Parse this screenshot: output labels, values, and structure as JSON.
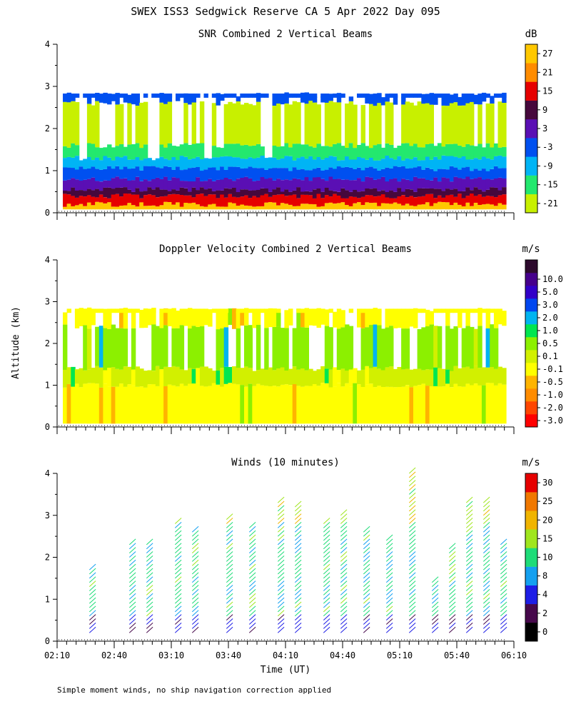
{
  "title": "SWEX ISS3 Sedgwick Reserve CA   5 Apr 2022 Day 095",
  "footnote": "Simple moment winds, no ship navigation correction applied",
  "ylabel": "Altitude (km)",
  "xlabel": "Time (UT)",
  "colors": {
    "snr": [
      "#c8f000",
      "#23e86e",
      "#00b4f5",
      "#0050f0",
      "#5a0fb4",
      "#46083c",
      "#e60000",
      "#ff8c00",
      "#ffc800"
    ],
    "doppler": [
      "#ff0000",
      "#ff4600",
      "#ff8c00",
      "#ffb400",
      "#ffff00",
      "#d2f000",
      "#8cf000",
      "#00e650",
      "#00b4f0",
      "#0046f0",
      "#3200c8",
      "#46008c",
      "#2d0a2d"
    ],
    "winds": [
      "#000000",
      "#46084b",
      "#1e1ee6",
      "#14a0f0",
      "#1edc78",
      "#a0e61e",
      "#f0b400",
      "#f07800",
      "#e60000"
    ]
  },
  "chart_data": [
    {
      "type": "heatmap",
      "title": "SNR Combined 2 Vertical Beams",
      "units": "dB",
      "ylim": [
        0,
        4
      ],
      "yticks": [
        "0",
        "1",
        "2",
        "3",
        "4"
      ],
      "xticks": [
        "02:10",
        "02:40",
        "03:10",
        "03:40",
        "04:10",
        "04:40",
        "05:10",
        "05:40",
        "06:10"
      ],
      "colorbar": [
        "-21",
        "-15",
        "-9",
        "-3",
        "3",
        "9",
        "15",
        "21",
        "27"
      ],
      "layers": [
        {
          "alt_top": 0.2,
          "value": 27
        },
        {
          "alt_top": 0.4,
          "value": 15
        },
        {
          "alt_top": 0.55,
          "value": 9
        },
        {
          "alt_top": 0.8,
          "value": 3
        },
        {
          "alt_top": 1.05,
          "value": -3
        },
        {
          "alt_top": 1.3,
          "value": -9
        },
        {
          "alt_top": 1.6,
          "value": -15
        },
        {
          "alt_top": 2.6,
          "value": -21
        },
        {
          "alt_top": 2.8,
          "value": -3
        }
      ]
    },
    {
      "type": "heatmap",
      "title": "Doppler Velocity Combined 2 Vertical Beams",
      "units": "m/s",
      "ylim": [
        0,
        4
      ],
      "yticks": [
        "0",
        "1",
        "2",
        "3",
        "4"
      ],
      "xticks": [
        "02:10",
        "02:40",
        "03:10",
        "03:40",
        "04:10",
        "04:40",
        "05:10",
        "05:40",
        "06:10"
      ],
      "colorbar": [
        "-3.0",
        "-2.0",
        "-1.0",
        "-0.5",
        "-0.1",
        "0.1",
        "0.5",
        "1.0",
        "2.0",
        "3.0",
        "5.0",
        "10.0"
      ],
      "layers": [
        {
          "alt_top": 1.0,
          "value": -0.1
        },
        {
          "alt_top": 1.4,
          "value": 0.1
        },
        {
          "alt_top": 2.4,
          "value": 0.5
        },
        {
          "alt_top": 2.8,
          "value": -0.1
        }
      ]
    },
    {
      "type": "wind_barbs",
      "title": "Winds (10 minutes)",
      "units": "m/s",
      "ylim": [
        0,
        4
      ],
      "yticks": [
        "0",
        "1",
        "2",
        "3",
        "4"
      ],
      "xticks": [
        "02:10",
        "02:40",
        "03:10",
        "03:40",
        "04:10",
        "04:40",
        "05:10",
        "05:40",
        "06:10"
      ],
      "colorbar": [
        "0",
        "2",
        "4",
        "8",
        "10",
        "15",
        "20",
        "25",
        "30"
      ],
      "profiles": [
        {
          "time": 2.45,
          "top": 1.8
        },
        {
          "time": 2.8,
          "top": 2.4
        },
        {
          "time": 2.95,
          "top": 2.35
        },
        {
          "time": 3.2,
          "top": 2.9
        },
        {
          "time": 3.35,
          "top": 2.7
        },
        {
          "time": 3.65,
          "top": 2.95
        },
        {
          "time": 3.85,
          "top": 2.8
        },
        {
          "time": 4.1,
          "top": 3.4
        },
        {
          "time": 4.25,
          "top": 3.3
        },
        {
          "time": 4.5,
          "top": 2.9
        },
        {
          "time": 4.65,
          "top": 3.1
        },
        {
          "time": 4.85,
          "top": 2.7
        },
        {
          "time": 5.05,
          "top": 2.5
        },
        {
          "time": 5.25,
          "top": 4.1
        },
        {
          "time": 5.45,
          "top": 1.5
        },
        {
          "time": 5.6,
          "top": 2.3
        },
        {
          "time": 5.75,
          "top": 3.4
        },
        {
          "time": 5.9,
          "top": 3.4
        },
        {
          "time": 6.05,
          "top": 2.4
        }
      ]
    }
  ]
}
